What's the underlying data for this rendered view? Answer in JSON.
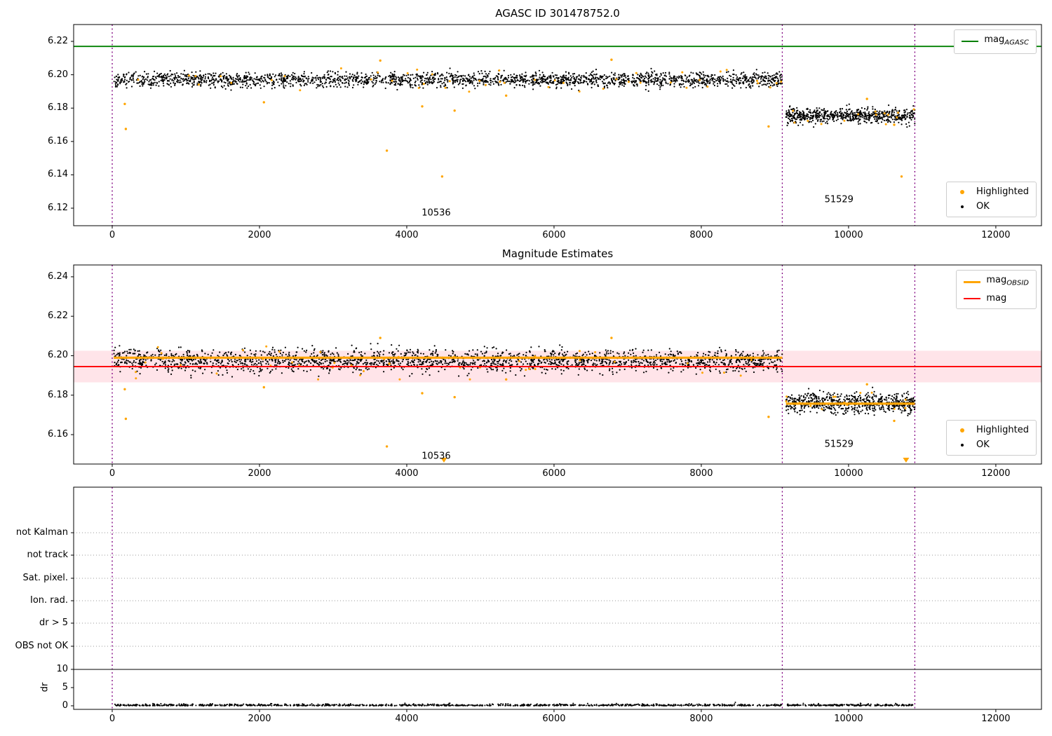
{
  "figure_title": "AGASC ID 301478752.0",
  "colors": {
    "ok_points": "#000000",
    "highlighted_points": "#ffa500",
    "mag_agasc_line": "#008000",
    "mag_obsid_line": "#ffa500",
    "mag_line": "#ff0000",
    "mag_error_band": "#ffb3c0",
    "obsid_boundary": "#800080",
    "flag_gridline": "#999999",
    "axes_border": "#000000"
  },
  "chart_data": [
    {
      "type": "scatter",
      "title": "AGASC ID 301478752.0",
      "xlim": [
        -524,
        12620
      ],
      "ylim": [
        6.1095,
        6.2301
      ],
      "xticks": [
        {
          "v": 0,
          "label": "0"
        },
        {
          "v": 2000,
          "label": "2000"
        },
        {
          "v": 4000,
          "label": "4000"
        },
        {
          "v": 6000,
          "label": "6000"
        },
        {
          "v": 8000,
          "label": "8000"
        },
        {
          "v": 10000,
          "label": "10000"
        },
        {
          "v": 12000,
          "label": "12000"
        }
      ],
      "yticks": [
        {
          "v": 6.12,
          "label": "6.12"
        },
        {
          "v": 6.14,
          "label": "6.14"
        },
        {
          "v": 6.16,
          "label": "6.16"
        },
        {
          "v": 6.18,
          "label": "6.18"
        },
        {
          "v": 6.2,
          "label": "6.20"
        },
        {
          "v": 6.22,
          "label": "6.22"
        }
      ],
      "agasc_line": {
        "y": 6.217,
        "color": "#008000"
      },
      "vlines": {
        "xs": [
          0,
          9100,
          10900
        ],
        "color": "#800080"
      },
      "clusters": [
        {
          "obsid": "10536",
          "x0": 20,
          "x1": 9100,
          "mean": 6.197,
          "sd": 0.0022,
          "n": 2200
        },
        {
          "obsid": "51529",
          "x0": 9150,
          "x1": 10900,
          "mean": 6.1755,
          "sd": 0.0022,
          "n": 650
        }
      ],
      "outliers": [
        {
          "x": 170,
          "y": 6.1825
        },
        {
          "x": 185,
          "y": 6.1675
        },
        {
          "x": 2060,
          "y": 6.1835
        },
        {
          "x": 3640,
          "y": 6.2085
        },
        {
          "x": 3730,
          "y": 6.1545
        },
        {
          "x": 4210,
          "y": 6.181
        },
        {
          "x": 4480,
          "y": 6.139
        },
        {
          "x": 4650,
          "y": 6.1785
        },
        {
          "x": 5350,
          "y": 6.1875
        },
        {
          "x": 6780,
          "y": 6.209
        },
        {
          "x": 8914,
          "y": 6.169
        },
        {
          "x": 10250,
          "y": 6.1855
        },
        {
          "x": 10620,
          "y": 6.17
        },
        {
          "x": 10720,
          "y": 6.139
        }
      ],
      "annotations": [
        {
          "text": "10536",
          "x": 4400,
          "y": 6.117
        },
        {
          "text": "51529",
          "x": 9870,
          "y": 6.125
        }
      ],
      "legends": [
        {
          "pos": "top-right",
          "items": [
            {
              "sample": "line",
              "color": "#008000",
              "lw": 2,
              "label": "mag",
              "sub": "AGASC"
            }
          ]
        },
        {
          "pos": "bottom-right",
          "items": [
            {
              "sample": "dot",
              "color": "#ffa500",
              "label": "Highlighted"
            },
            {
              "sample": "dot",
              "color": "#000000",
              "label": "OK"
            }
          ]
        }
      ]
    },
    {
      "type": "scatter",
      "title": "Magnitude Estimates",
      "xlim": [
        -524,
        12620
      ],
      "ylim": [
        6.1451,
        6.246
      ],
      "xticks": [
        {
          "v": 0,
          "label": "0"
        },
        {
          "v": 2000,
          "label": "2000"
        },
        {
          "v": 4000,
          "label": "4000"
        },
        {
          "v": 6000,
          "label": "6000"
        },
        {
          "v": 8000,
          "label": "8000"
        },
        {
          "v": 10000,
          "label": "10000"
        },
        {
          "v": 12000,
          "label": "12000"
        }
      ],
      "yticks": [
        {
          "v": 6.16,
          "label": "6.16"
        },
        {
          "v": 6.18,
          "label": "6.18"
        },
        {
          "v": 6.2,
          "label": "6.20"
        },
        {
          "v": 6.22,
          "label": "6.22"
        },
        {
          "v": 6.24,
          "label": "6.24"
        }
      ],
      "mag_line": {
        "y": 6.1945,
        "color": "#ff0000",
        "band": [
          6.1865,
          6.2025
        ],
        "band_color": "#ffb3c0"
      },
      "obsid_lines": [
        {
          "x0": 20,
          "x1": 9100,
          "y": 6.199
        },
        {
          "x0": 9150,
          "x1": 10900,
          "y": 6.1757
        }
      ],
      "vlines": {
        "xs": [
          0,
          9100,
          10900
        ],
        "color": "#800080"
      },
      "clusters": [
        {
          "obsid": "10536",
          "x0": 20,
          "x1": 9100,
          "mean": 6.1975,
          "sd": 0.0028,
          "n": 2200
        },
        {
          "obsid": "51529",
          "x0": 9150,
          "x1": 10900,
          "mean": 6.1762,
          "sd": 0.0025,
          "n": 650
        }
      ],
      "outliers": [
        {
          "x": 170,
          "y": 6.183
        },
        {
          "x": 185,
          "y": 6.168
        },
        {
          "x": 2060,
          "y": 6.184
        },
        {
          "x": 3640,
          "y": 6.209
        },
        {
          "x": 3730,
          "y": 6.154
        },
        {
          "x": 4210,
          "y": 6.181
        },
        {
          "x": 4650,
          "y": 6.179
        },
        {
          "x": 5350,
          "y": 6.188
        },
        {
          "x": 6780,
          "y": 6.209
        },
        {
          "x": 8914,
          "y": 6.169
        },
        {
          "x": 10250,
          "y": 6.1855
        },
        {
          "x": 10620,
          "y": 6.167
        }
      ],
      "clipped_markers": [
        {
          "x": 4505
        },
        {
          "x": 10781
        }
      ],
      "annotations": [
        {
          "text": "10536",
          "x": 4400,
          "y": 6.149
        },
        {
          "text": "51529",
          "x": 9870,
          "y": 6.155
        }
      ],
      "legends": [
        {
          "pos": "top-right",
          "items": [
            {
              "sample": "line",
              "color": "#ffa500",
              "lw": 3,
              "label": "mag",
              "sub": "OBSID"
            },
            {
              "sample": "line",
              "color": "#ff0000",
              "lw": 2,
              "label": "mag"
            }
          ]
        },
        {
          "pos": "bottom-right",
          "items": [
            {
              "sample": "dot",
              "color": "#ffa500",
              "label": "Highlighted"
            },
            {
              "sample": "dot",
              "color": "#000000",
              "label": "OK"
            }
          ]
        }
      ]
    },
    {
      "type": "flags",
      "xlim": [
        -524,
        12620
      ],
      "xticks": [
        {
          "v": 0,
          "label": "0"
        },
        {
          "v": 2000,
          "label": "2000"
        },
        {
          "v": 4000,
          "label": "4000"
        },
        {
          "v": 6000,
          "label": "6000"
        },
        {
          "v": 8000,
          "label": "8000"
        },
        {
          "v": 10000,
          "label": "10000"
        },
        {
          "v": 12000,
          "label": "12000"
        }
      ],
      "flags": [
        "not Kalman",
        "not track",
        "Sat. pixel.",
        "Ion. rad.",
        "dr > 5",
        "OBS not OK"
      ],
      "dr_axis": {
        "label": "dr",
        "ticks": [
          {
            "v": 0,
            "label": "0"
          },
          {
            "v": 5,
            "label": "5"
          },
          {
            "v": 10,
            "label": "10"
          }
        ],
        "threshold_line": 10
      },
      "vlines": {
        "xs": [
          0,
          9100,
          10900
        ],
        "color": "#800080"
      },
      "dr_points": [
        {
          "x0": 20,
          "x1": 9100,
          "n": 1050
        },
        {
          "x0": 9150,
          "x1": 10900,
          "n": 220
        }
      ]
    }
  ]
}
